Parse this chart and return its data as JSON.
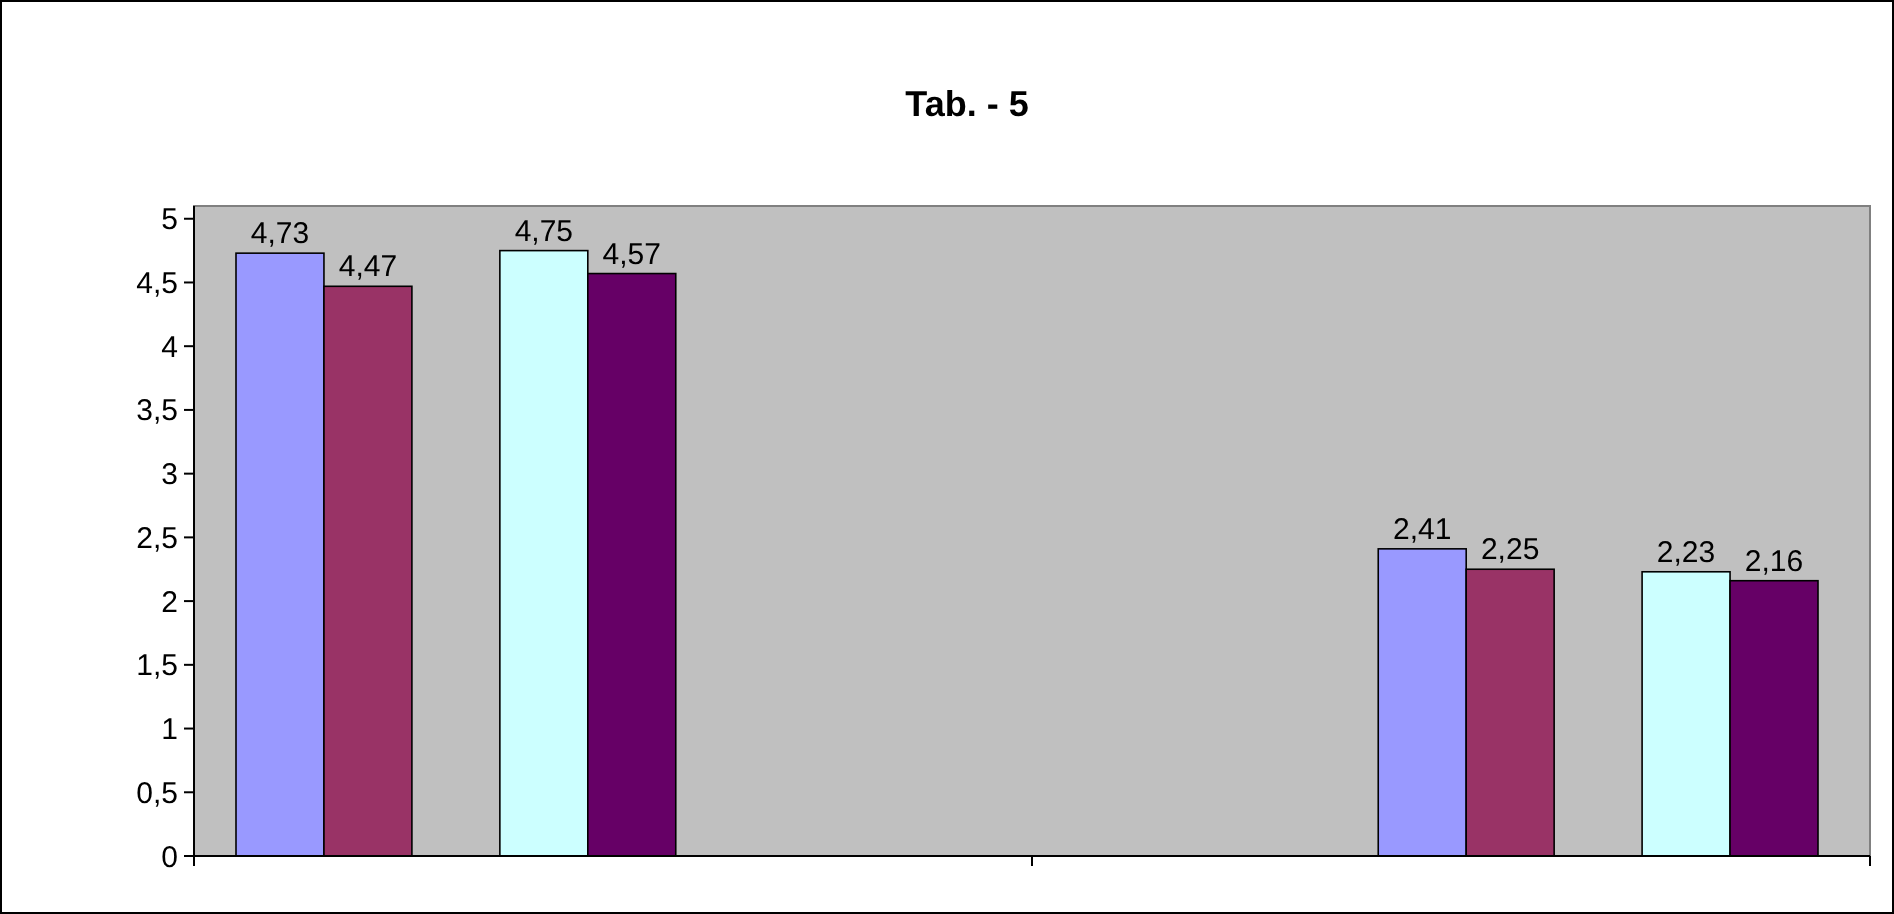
{
  "chart_data": {
    "type": "bar",
    "title": "Tab. - 5",
    "categories": [
      null,
      null
    ],
    "series": [
      {
        "color": "#9999ff",
        "values": [
          4.73,
          2.41
        ],
        "value_labels": [
          "4,73",
          "2,41"
        ]
      },
      {
        "color": "#993366",
        "values": [
          4.47,
          2.25
        ],
        "value_labels": [
          "4,47",
          "2,25"
        ]
      },
      {
        "values": [
          null,
          null
        ],
        "value_labels": [
          null,
          null
        ]
      },
      {
        "color": "#ccffff",
        "values": [
          4.75,
          2.23
        ],
        "value_labels": [
          "4,75",
          "2,23"
        ]
      },
      {
        "color": "#660066",
        "values": [
          4.57,
          2.16
        ],
        "value_labels": [
          "4,57",
          "2,16"
        ]
      }
    ],
    "ylim": [
      0,
      5.1
    ],
    "yticks": [
      0,
      {
        "value": 0.5,
        "label": "0,5"
      },
      1,
      {
        "value": 1.5,
        "label": "1,5"
      },
      2,
      {
        "value": 2.5,
        "label": "2,5"
      },
      3,
      {
        "value": 3.5,
        "label": "3,5"
      },
      4,
      {
        "value": 4.5,
        "label": "4,5"
      },
      5
    ],
    "grid": false
  }
}
